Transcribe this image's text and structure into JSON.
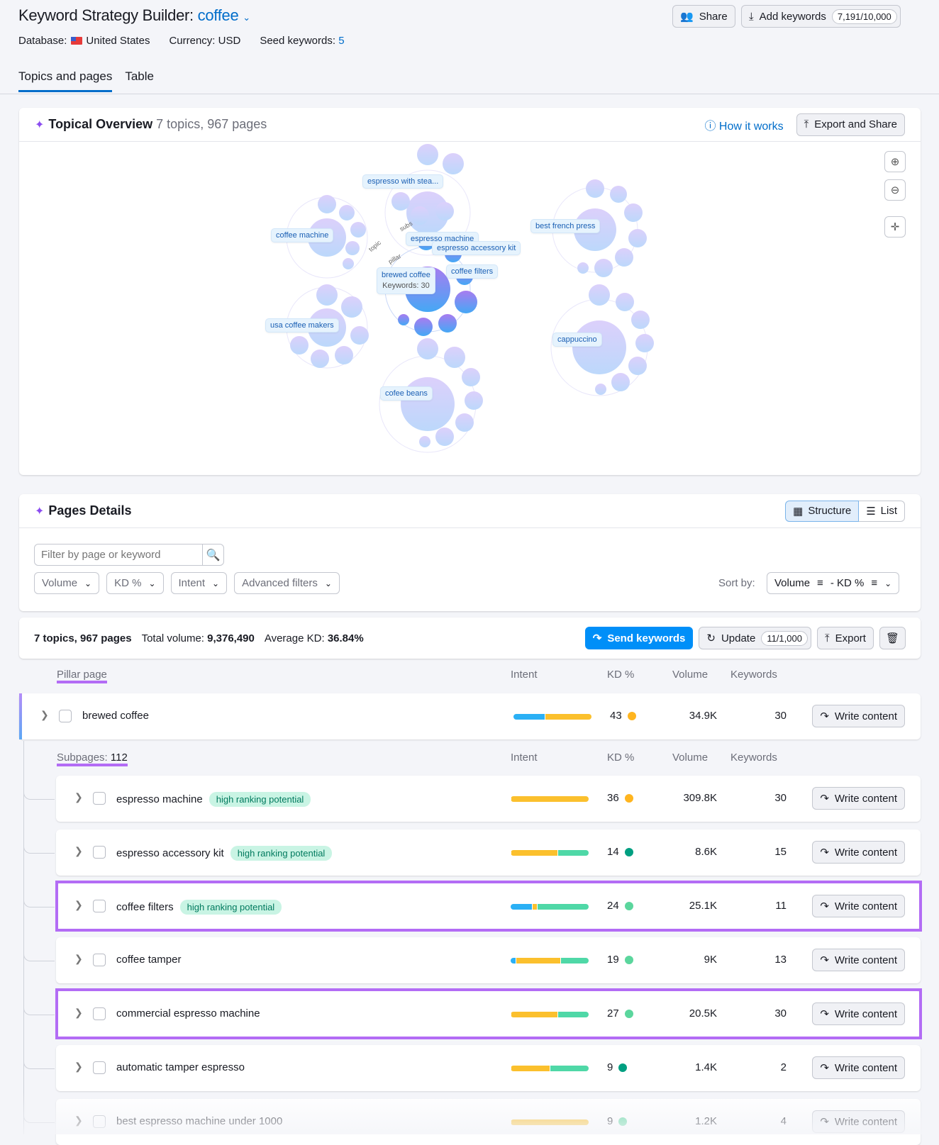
{
  "header": {
    "title": "Keyword Strategy Builder:",
    "keyword": "coffee",
    "database_label": "Database:",
    "database": "United States",
    "currency": "Currency: USD",
    "seed_label": "Seed keywords:",
    "seed_count": "5",
    "share": "Share",
    "add_keywords": "Add keywords",
    "keywords_quota": "7,191/10,000"
  },
  "tabs": [
    {
      "label": "Topics and pages",
      "active": true
    },
    {
      "label": "Table",
      "active": false
    }
  ],
  "overview": {
    "title": "Topical Overview",
    "subtitle": "7 topics, 967 pages",
    "how_it_works": "How it works",
    "export_share": "Export and Share",
    "topics": [
      "espresso with stea...",
      "coffee machine",
      "best french press",
      "usa coffee makers",
      "cappuccino",
      "cofee beans"
    ],
    "focus": {
      "pillar": "brewed coffee",
      "keywords": "Keywords: 30",
      "subpages": [
        "espresso machine",
        "espresso accessory kit",
        "coffee filters"
      ],
      "arc_labels": [
        "topic",
        "pillar",
        "subs"
      ]
    }
  },
  "details": {
    "title": "Pages Details",
    "structure": "Structure",
    "list": "List",
    "filter_placeholder": "Filter by page or keyword",
    "filters": [
      "Volume",
      "KD %",
      "Intent",
      "Advanced filters"
    ],
    "sort_label": "Sort by:",
    "sort_value": "Volume",
    "sort_value2": "- KD %"
  },
  "summary": {
    "counts": "7 topics, 967 pages",
    "volume_label": "Total volume:",
    "volume": "9,376,490",
    "kd_label": "Average KD:",
    "kd": "36.84%",
    "send": "Send keywords",
    "update": "Update",
    "update_quota": "11/1,000",
    "export": "Export"
  },
  "columns": {
    "pillar": "Pillar page",
    "subpages": "Subpages:",
    "subpages_count": "112",
    "intent": "Intent",
    "kd": "KD %",
    "volume": "Volume",
    "keywords": "Keywords"
  },
  "colors": {
    "informational": "#2bb0f5",
    "commercial": "#fbc02d",
    "transactional": "#4fd8a7",
    "kd_medium": "#ffb51f",
    "kd_easy": "#5bd69d",
    "kd_very_easy": "#009f81",
    "highlight": "#b36cf5",
    "accent": "#006dca"
  },
  "pillar": {
    "name": "brewed coffee",
    "intent": [
      40,
      60,
      0
    ],
    "kd": "43",
    "kd_level": "kd_medium",
    "volume": "34.9K",
    "keywords": "30",
    "action": "Write content"
  },
  "rows": [
    {
      "name": "espresso machine",
      "tag": "high ranking potential",
      "intent": [
        0,
        100,
        0
      ],
      "kd": "36",
      "kd_level": "kd_medium",
      "volume": "309.8K",
      "keywords": "30",
      "action": "Write content",
      "highlight": false
    },
    {
      "name": "espresso accessory kit",
      "tag": "high ranking potential",
      "intent": [
        0,
        60,
        40
      ],
      "kd": "14",
      "kd_level": "kd_very_easy",
      "volume": "8.6K",
      "keywords": "15",
      "action": "Write content",
      "highlight": false
    },
    {
      "name": "coffee filters",
      "tag": "high ranking potential",
      "intent": [
        27,
        7,
        66
      ],
      "kd": "24",
      "kd_level": "kd_easy",
      "volume": "25.1K",
      "keywords": "11",
      "action": "Write content",
      "highlight": true
    },
    {
      "name": "coffee tamper",
      "tag": "",
      "intent": [
        6,
        58,
        36
      ],
      "kd": "19",
      "kd_level": "kd_easy",
      "volume": "9K",
      "keywords": "13",
      "action": "Write content",
      "highlight": false
    },
    {
      "name": "commercial espresso machine",
      "tag": "",
      "intent": [
        0,
        60,
        40
      ],
      "kd": "27",
      "kd_level": "kd_easy",
      "volume": "20.5K",
      "keywords": "30",
      "action": "Write content",
      "highlight": true
    },
    {
      "name": "automatic tamper espresso",
      "tag": "",
      "intent": [
        0,
        50,
        50
      ],
      "kd": "9",
      "kd_level": "kd_very_easy",
      "volume": "1.4K",
      "keywords": "2",
      "action": "Write content",
      "highlight": false
    },
    {
      "name": "best espresso machine under 1000",
      "tag": "",
      "intent": [
        0,
        100,
        0
      ],
      "kd": "9",
      "kd_level": "kd_easy",
      "volume": "1.2K",
      "keywords": "4",
      "action": "Write content",
      "highlight": false
    }
  ]
}
